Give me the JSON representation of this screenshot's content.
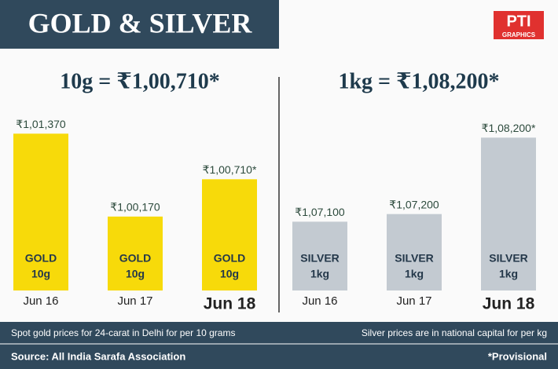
{
  "header": {
    "title": "GOLD & SILVER",
    "logo": "PTI",
    "logo_sub": "GRAPHICS"
  },
  "chart_data": [
    {
      "type": "bar",
      "title": "10g = ₹1,00,710*",
      "categories": [
        "Jun 16",
        "Jun 17",
        "Jun 18"
      ],
      "values": [
        101370,
        100170,
        100710
      ],
      "value_labels": [
        "₹1,01,370",
        "₹1,00,170",
        "₹1,00,710*"
      ],
      "bar_text": "GOLD",
      "bar_unit": "10g",
      "color": "#f7da0a",
      "ylim": [
        99100,
        101600
      ]
    },
    {
      "type": "bar",
      "title": "1kg = ₹1,08,200*",
      "categories": [
        "Jun 16",
        "Jun 17",
        "Jun 18"
      ],
      "values": [
        107100,
        107200,
        108200
      ],
      "value_labels": [
        "₹1,07,100",
        "₹1,07,200",
        "₹1,08,200*"
      ],
      "bar_text": "SILVER",
      "bar_unit": "1kg",
      "color": "#c3cad1",
      "ylim": [
        106200,
        108460
      ]
    }
  ],
  "footer": {
    "note_left": "Spot gold prices for 24-carat in Delhi for per 10 grams",
    "note_right": "Silver prices are in national capital for per kg",
    "source": "Source: All India Sarafa Association",
    "provisional": "*Provisional"
  }
}
